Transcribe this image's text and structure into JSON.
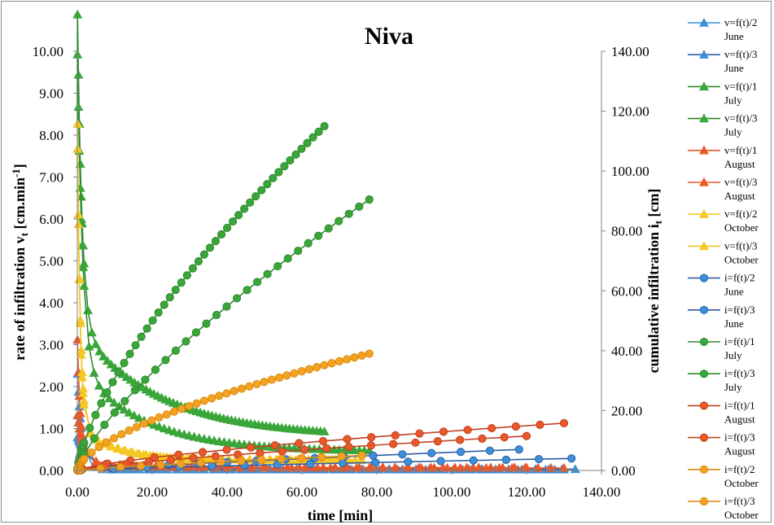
{
  "chart_data": {
    "type": "line",
    "title": "Niva",
    "xlabel": "time [min]",
    "ylabel_left": {
      "main": "rate of infiltration v",
      "sub": "t",
      "tail": " [cm.min",
      "sup": "-1",
      "end": "]"
    },
    "ylabel_right": {
      "main": "cumulative infiltration i",
      "sub": "t",
      "tail": " [cm]"
    },
    "x_range": [
      0,
      140
    ],
    "y_left_range": [
      0,
      10
    ],
    "y_right_range": [
      0,
      140
    ],
    "x_ticks": [
      "0.00",
      "20.00",
      "40.00",
      "60.00",
      "80.00",
      "100.00",
      "120.00",
      "140.00"
    ],
    "y_left_ticks": [
      "0.00",
      "1.00",
      "2.00",
      "3.00",
      "4.00",
      "5.00",
      "6.00",
      "7.00",
      "8.00",
      "9.00",
      "10.00"
    ],
    "y_right_ticks": [
      "0.00",
      "20.00",
      "40.00",
      "60.00",
      "80.00",
      "100.00",
      "120.00",
      "140.00"
    ],
    "grid": false,
    "legend_position": "right",
    "colors": {
      "blue": "#3f8fd6",
      "green": "#3aa63a",
      "red": "#e8582a",
      "orange": "#f4a21f",
      "yellow": "#f4c724",
      "navy": "#2c5ea8",
      "darkgreen": "#2e8a2e",
      "darkline": "#333333"
    },
    "series": [
      {
        "name": "v=f(t)/2 June",
        "label_lines": [
          "v=f(t)/2",
          "June"
        ],
        "axis": "left",
        "marker": "triangle",
        "color": "#3f8fd6",
        "line": "#3f8fd6",
        "x_max": 130,
        "v0": 2.4,
        "vinf": 0.02,
        "tau": 1.2,
        "count": 60
      },
      {
        "name": "v=f(t)/3 June",
        "label_lines": [
          "v=f(t)/3",
          "June"
        ],
        "axis": "left",
        "marker": "triangle",
        "color": "#3f8fd6",
        "line": "#2c5ea8",
        "x_max": 133,
        "v0": 0.8,
        "vinf": 0.03,
        "tau": 3,
        "count": 45
      },
      {
        "name": "v=f(t)/1 July",
        "label_lines": [
          "v=f(t)/1",
          "July"
        ],
        "axis": "left",
        "marker": "triangle",
        "color": "#3aa63a",
        "line": "#2e8a2e",
        "x_max": 66,
        "v0": 8.6,
        "vinf": 0.8,
        "tau": 1.2,
        "c2": 2.6,
        "tau2": 22,
        "count": 70
      },
      {
        "name": "v=f(t)/3 July",
        "label_lines": [
          "v=f(t)/3",
          "July"
        ],
        "axis": "left",
        "marker": "triangle",
        "color": "#3aa63a",
        "line": "#2e8a2e",
        "x_max": 78,
        "v0": 8.2,
        "vinf": 0.45,
        "tau": 1.4,
        "c2": 2.0,
        "tau2": 18,
        "count": 65
      },
      {
        "name": "v=f(t)/1 August",
        "label_lines": [
          "v=f(t)/1",
          "August"
        ],
        "axis": "left",
        "marker": "triangle",
        "color": "#e8582a",
        "line": "#e8582a",
        "x_max": 130,
        "v0": 3.1,
        "vinf": 0.06,
        "tau": 0.8,
        "c2": 0.2,
        "tau2": 10,
        "count": 45
      },
      {
        "name": "v=f(t)/3 August",
        "label_lines": [
          "v=f(t)/3",
          "August"
        ],
        "axis": "left",
        "marker": "triangle",
        "color": "#e8582a",
        "line": "#e8582a",
        "x_max": 120,
        "v0": 1.2,
        "vinf": 0.07,
        "tau": 1.5,
        "c2": 0.15,
        "tau2": 15,
        "count": 45
      },
      {
        "name": "v=f(t)/2 October",
        "label_lines": [
          "v=f(t)/2",
          "October"
        ],
        "axis": "left",
        "marker": "triangle",
        "color": "#f4c724",
        "line": "#f4c724",
        "x_max": 76,
        "v0": 7.9,
        "vinf": 0.25,
        "tau": 0.7,
        "c2": 0.9,
        "tau2": 9,
        "count": 50
      },
      {
        "name": "v=f(t)/3 October",
        "label_lines": [
          "v=f(t)/3",
          "October"
        ],
        "axis": "left",
        "marker": "triangle",
        "color": "#f4c724",
        "line": "#f4c724",
        "x_max": 70,
        "v0": 7.3,
        "vinf": 0.25,
        "tau": 0.8,
        "c2": 0.8,
        "tau2": 10,
        "count": 45
      },
      {
        "name": "i=f(t)/2 June",
        "label_lines": [
          "i=f(t)/2",
          "June"
        ],
        "axis": "right",
        "marker": "circle",
        "color": "#3f8fd6",
        "line": "#2c5ea8",
        "x_max": 118,
        "end": 7,
        "pow": 0.85,
        "count": 20
      },
      {
        "name": "i=f(t)/3 June",
        "label_lines": [
          "i=f(t)/3",
          "June"
        ],
        "axis": "right",
        "marker": "circle",
        "color": "#3f8fd6",
        "line": "#2c5ea8",
        "x_max": 132,
        "end": 4,
        "pow": 0.8,
        "count": 20
      },
      {
        "name": "i=f(t)/1 July",
        "label_lines": [
          "i=f(t)/1",
          "July"
        ],
        "axis": "right",
        "marker": "circle",
        "color": "#3aa63a",
        "line": "#2e8a2e",
        "x_max": 66,
        "end": 115,
        "pow": 0.7,
        "count": 50
      },
      {
        "name": "i=f(t)/3 July",
        "label_lines": [
          "i=f(t)/3",
          "July"
        ],
        "axis": "right",
        "marker": "circle",
        "color": "#3aa63a",
        "line": "#2e8a2e",
        "x_max": 78,
        "end": 90.5,
        "pow": 0.75,
        "count": 36
      },
      {
        "name": "i=f(t)/1 August",
        "label_lines": [
          "i=f(t)/1",
          "August"
        ],
        "axis": "right",
        "marker": "circle",
        "color": "#e8582a",
        "line": "#c04020",
        "x_max": 130,
        "end": 15.8,
        "pow": 0.7,
        "count": 26
      },
      {
        "name": "i=f(t)/3 August",
        "label_lines": [
          "i=f(t)/3",
          "August"
        ],
        "axis": "right",
        "marker": "circle",
        "color": "#e8582a",
        "line": "#c04020",
        "x_max": 120,
        "end": 11.5,
        "pow": 0.75,
        "count": 26
      },
      {
        "name": "i=f(t)/2 October",
        "label_lines": [
          "i=f(t)/2",
          "October"
        ],
        "axis": "right",
        "marker": "circle",
        "color": "#f4a21f",
        "line": "#d98a10",
        "x_max": 76,
        "end": 5,
        "pow": 0.8,
        "count": 18
      },
      {
        "name": "i=f(t)/3 October",
        "label_lines": [
          "i=f(t)/3",
          "October"
        ],
        "axis": "right",
        "marker": "circle",
        "color": "#f4a21f",
        "line": "#d98a10",
        "x_max": 78,
        "end": 39,
        "pow": 0.62,
        "count": 46
      }
    ]
  }
}
